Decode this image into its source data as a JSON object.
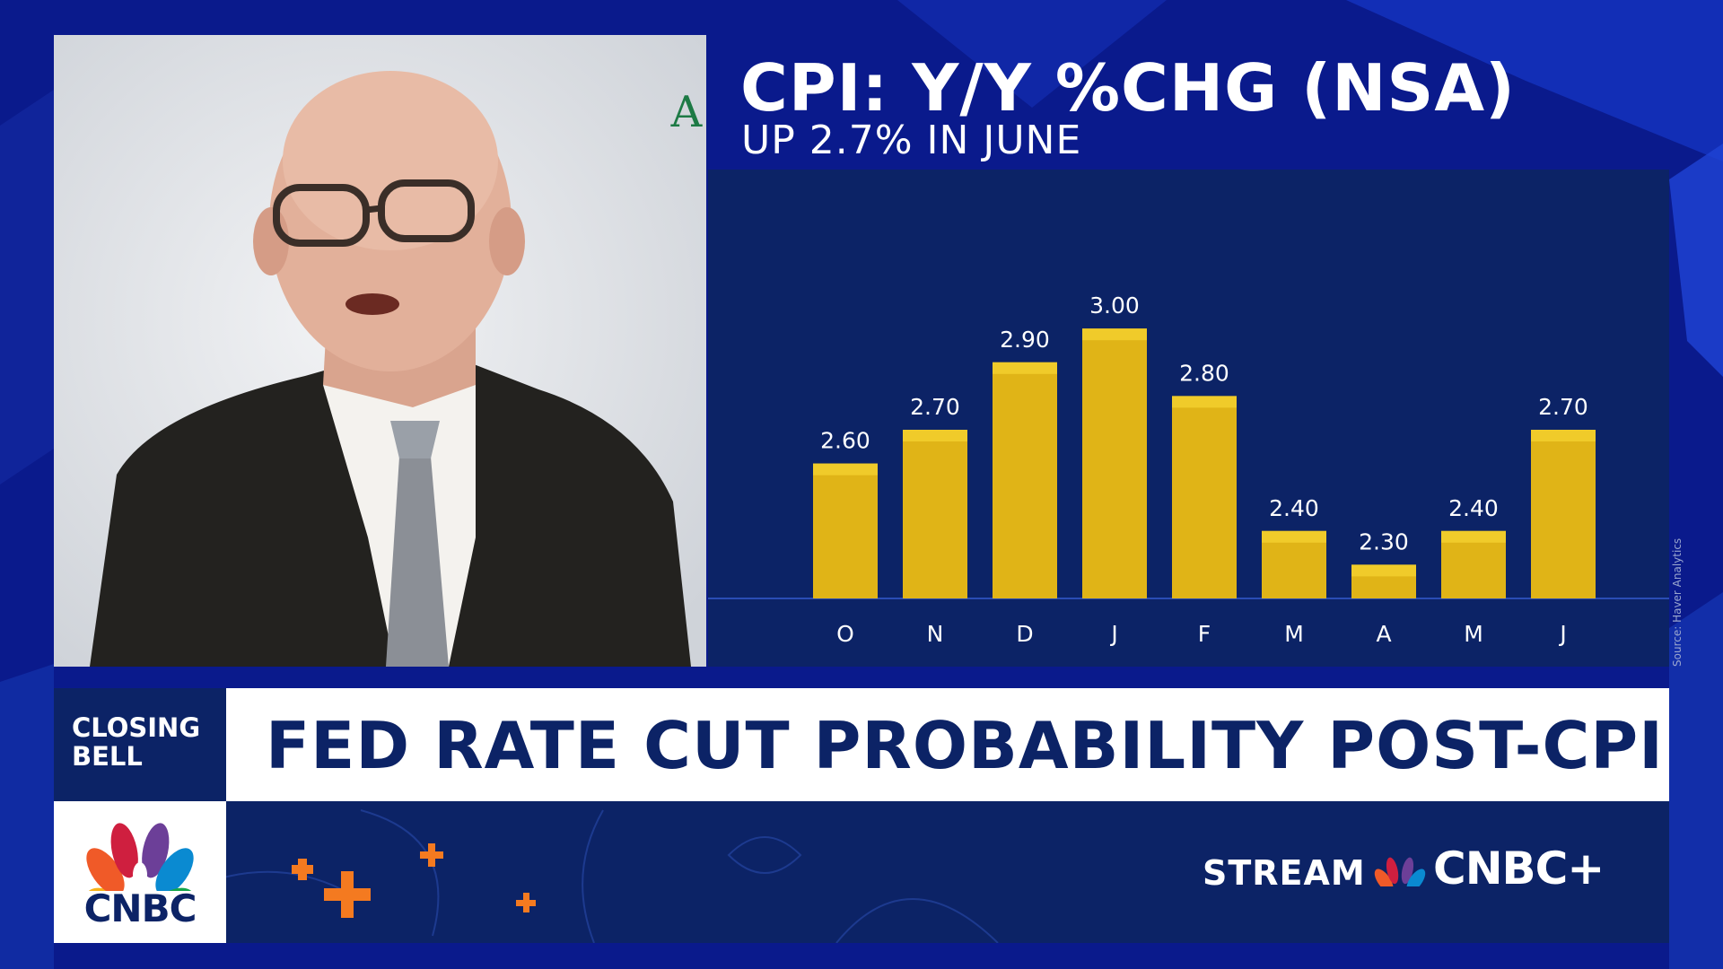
{
  "chart_data": {
    "type": "bar",
    "title": "CPI: Y/Y %CHG (NSA)",
    "subtitle": "UP 2.7% IN JUNE",
    "categories": [
      "O",
      "N",
      "D",
      "J",
      "F",
      "M",
      "A",
      "M",
      "J"
    ],
    "values": [
      2.6,
      2.7,
      2.9,
      3.0,
      2.8,
      2.4,
      2.3,
      2.4,
      2.7
    ],
    "value_labels": [
      "2.60",
      "2.70",
      "2.90",
      "3.00",
      "2.80",
      "2.40",
      "2.30",
      "2.40",
      "2.70"
    ],
    "ylim": [
      2.2,
      3.2
    ],
    "xlabel": "",
    "ylabel": "",
    "grid": false,
    "source": "Source: Haver Analytics",
    "colors": {
      "bar": "#e0b417",
      "bar_top": "#f0cb2a",
      "panel": "#0c2366",
      "baseline": "#2a4db5"
    }
  },
  "video": {
    "wall_logo": "A"
  },
  "lower_third": {
    "show_name": "CLOSING BELL",
    "headline": "FED RATE CUT PROBABILITY POST-CPI",
    "network": "CNBC",
    "stream_label": "STREAM",
    "stream_brand": "CNBC+"
  },
  "colors": {
    "accent_orange": "#f47a20",
    "navy": "#0c2366",
    "background": "#0a1a8c"
  }
}
